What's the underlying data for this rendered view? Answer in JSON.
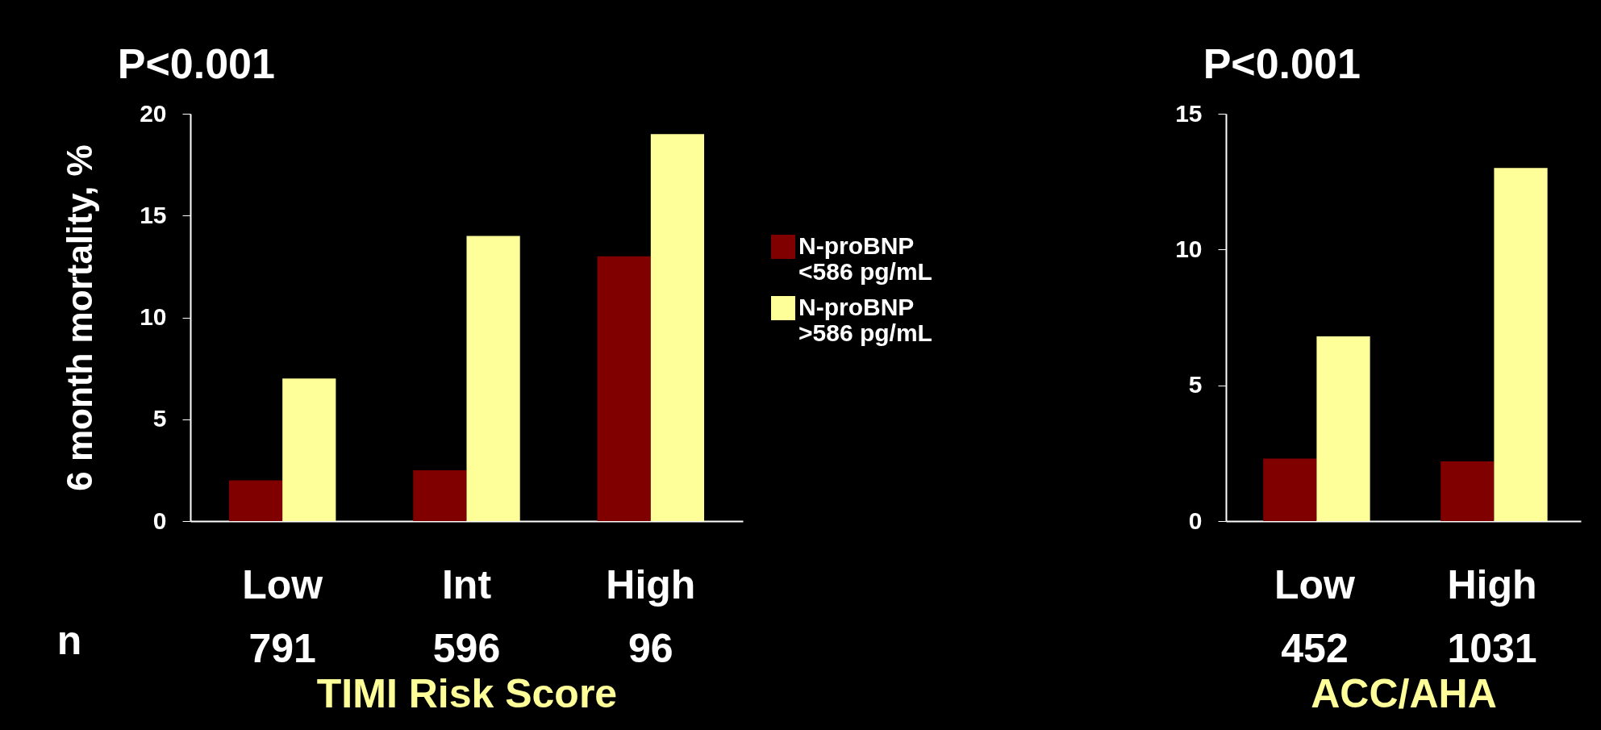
{
  "chart_data": [
    {
      "type": "bar",
      "title": "P<0.001",
      "xlabel": "TIMI Risk Score",
      "ylabel": "6 month mortality, %",
      "categories": [
        "Low",
        "Int",
        "High"
      ],
      "series": [
        {
          "name": "N-proBNP <586 pg/mL",
          "color": "#800000",
          "values": [
            2,
            2.5,
            13
          ]
        },
        {
          "name": "N-proBNP >586 pg/mL",
          "color": "#ffff99",
          "values": [
            7,
            14,
            19
          ]
        }
      ],
      "ylim": [
        0,
        20
      ],
      "yticks": [
        0,
        5,
        10,
        15,
        20
      ],
      "grid": false,
      "legend": "right",
      "annotations": [
        "n",
        "791",
        "596",
        "96"
      ]
    },
    {
      "type": "bar",
      "title": "P<0.001",
      "xlabel": "ACC/AHA",
      "categories": [
        "Low",
        "High"
      ],
      "series": [
        {
          "name": "N-proBNP <586 pg/mL",
          "color": "#800000",
          "values": [
            2.3,
            2.2
          ]
        },
        {
          "name": "N-proBNP >586 pg/mL",
          "color": "#ffff99",
          "values": [
            6.8,
            13
          ]
        }
      ],
      "ylim": [
        0,
        15
      ],
      "yticks": [
        0,
        5,
        10,
        15
      ],
      "grid": false,
      "annotations": [
        "452",
        "1031"
      ]
    }
  ]
}
